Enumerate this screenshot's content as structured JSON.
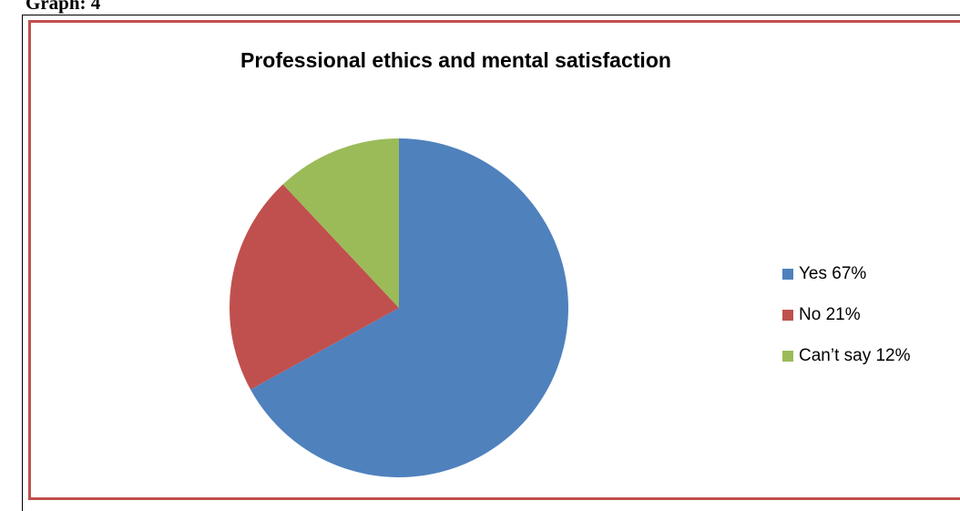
{
  "page": {
    "heading": "Graph: 4"
  },
  "chart_data": {
    "type": "pie",
    "title": "Professional ethics and mental satisfaction",
    "categories": [
      "Yes",
      "No",
      "Can’t say"
    ],
    "values": [
      67,
      21,
      12
    ],
    "legend_labels": [
      "Yes 67%",
      "No 21%",
      "Can’t say 12%"
    ],
    "colors": [
      "#4f81bd",
      "#c0504d",
      "#9bbb59"
    ],
    "legend_position": "right",
    "frame_color": "#c0504d"
  }
}
